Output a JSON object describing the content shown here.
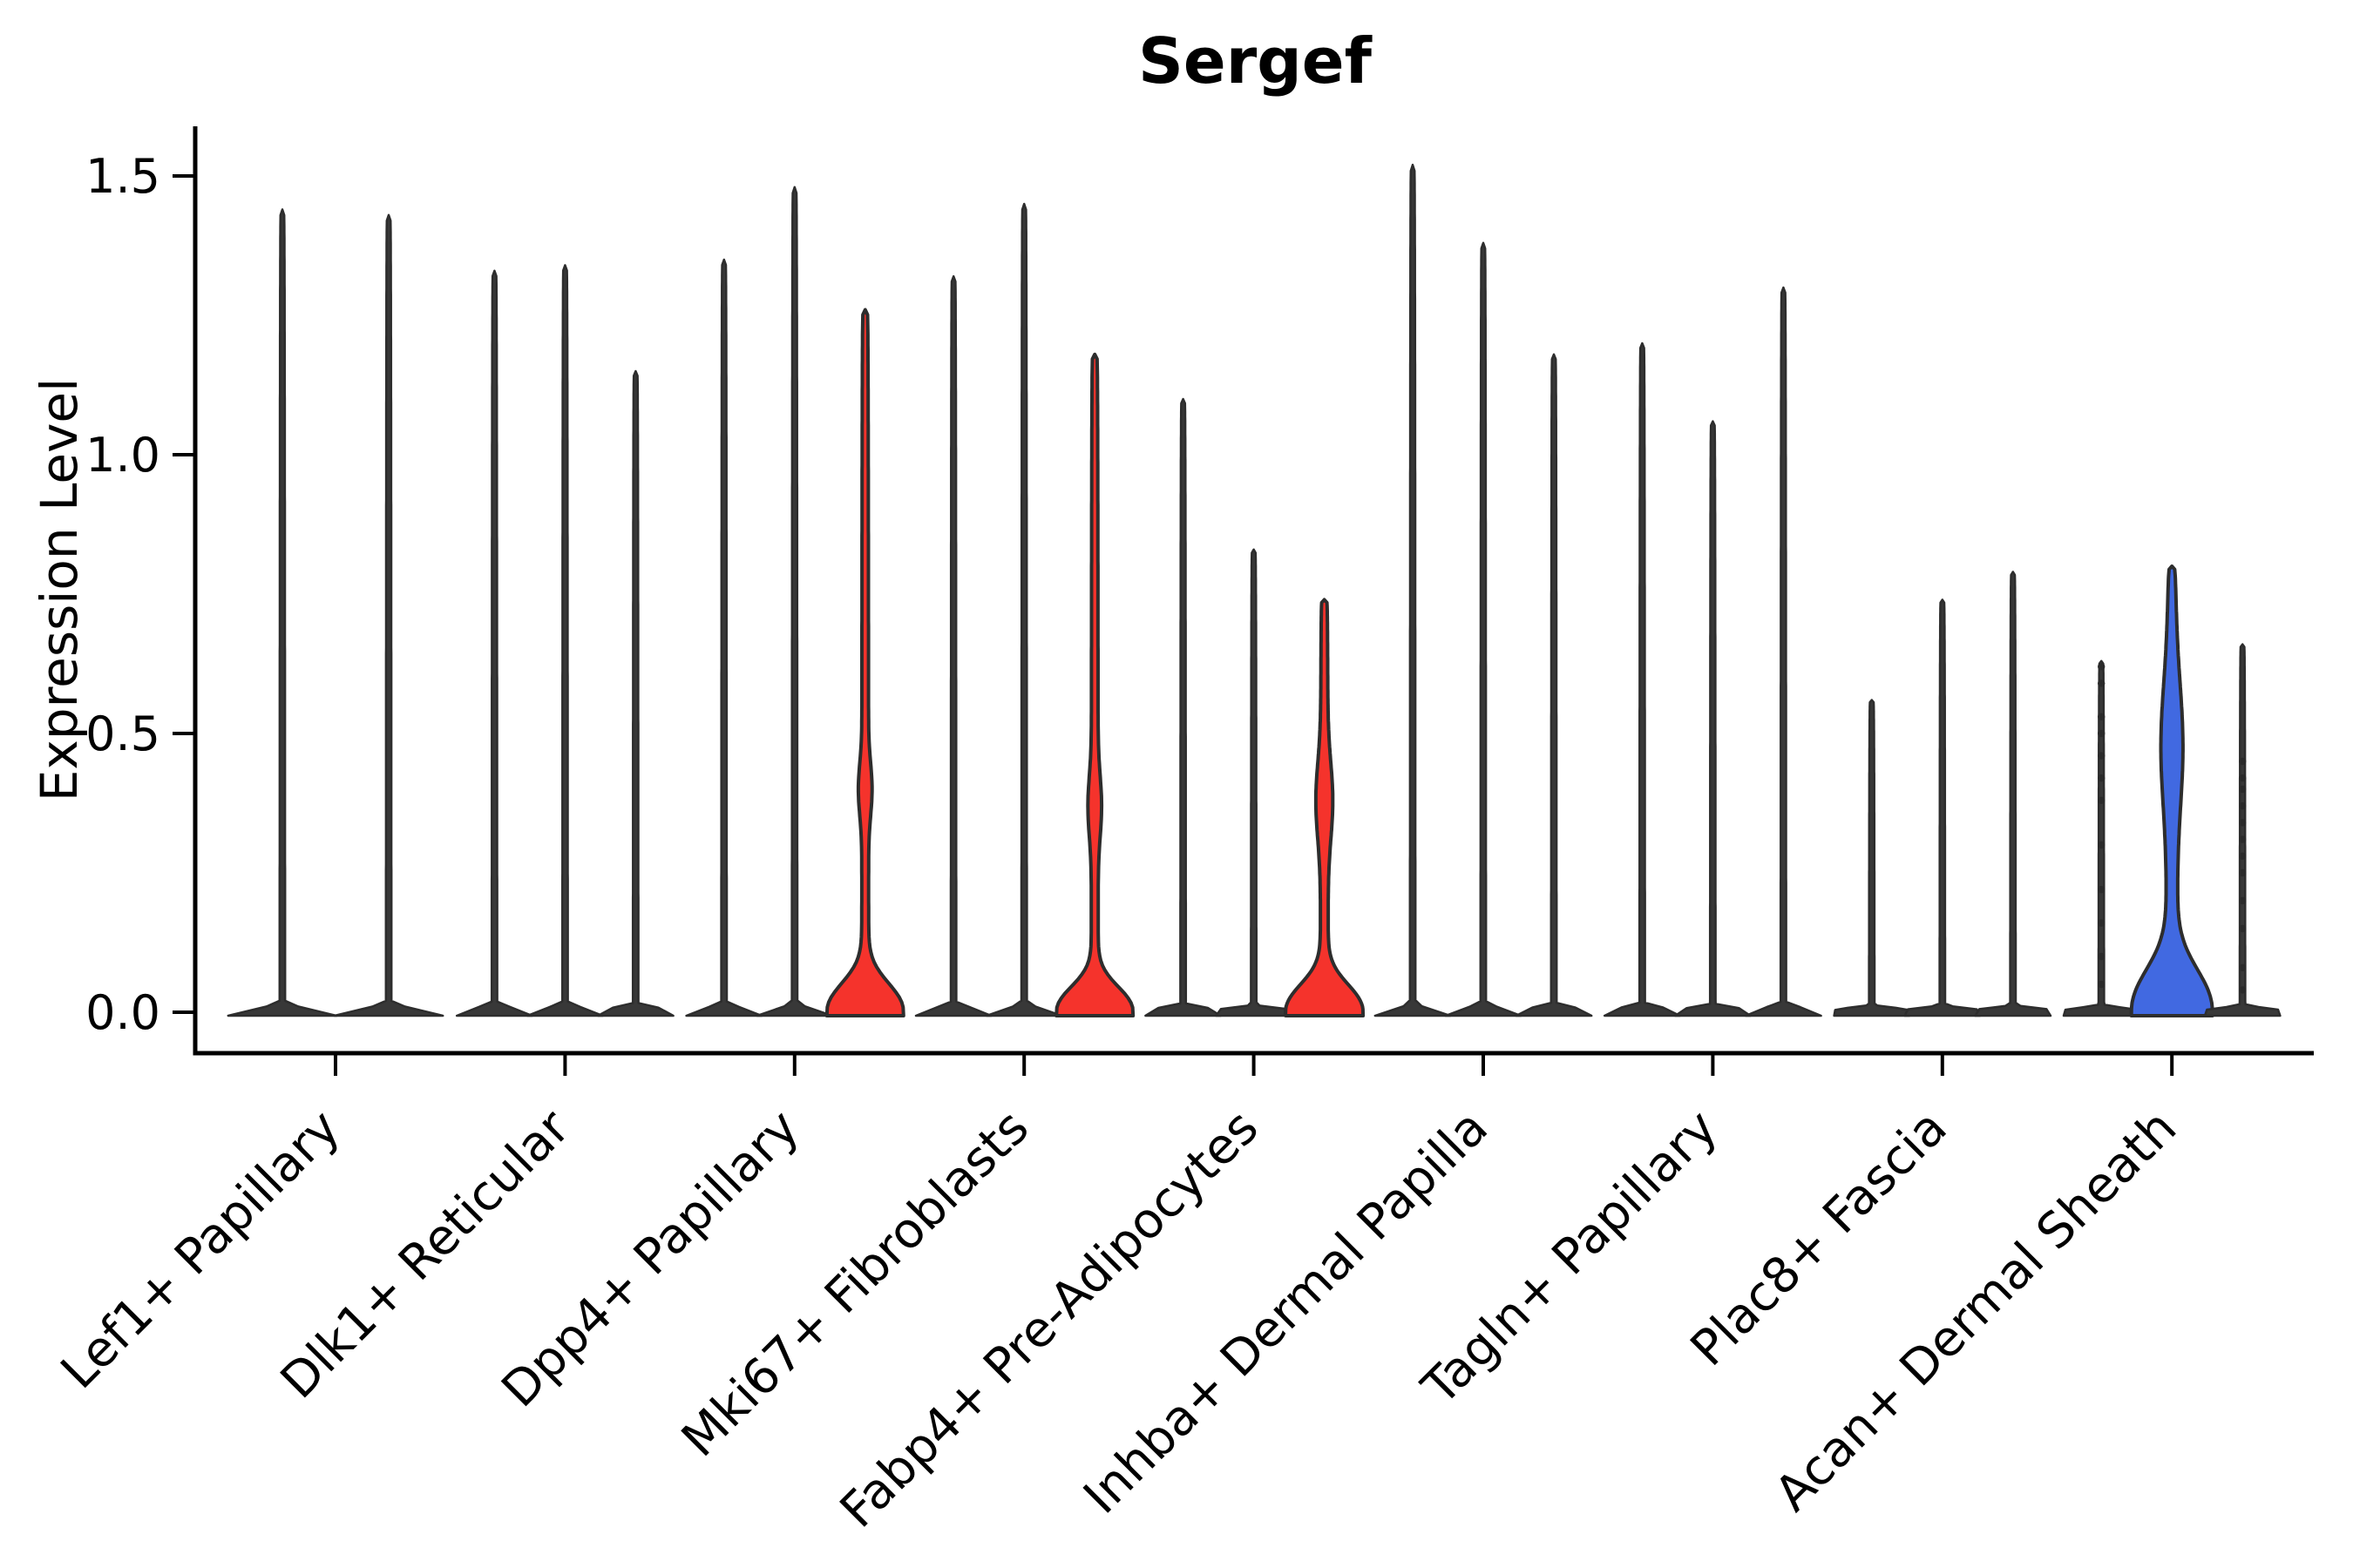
{
  "figure": {
    "title": "Sergef",
    "ylabel": "Expression Level"
  },
  "colors": {
    "red": "#f5332c",
    "blue": "#4169e1",
    "spike_fill": "#383838",
    "stroke": "#2d2d2d",
    "axis": "#000000",
    "text": "#000000"
  },
  "chart_data": {
    "type": "violin",
    "title": "Sergef",
    "xlabel": "",
    "ylabel": "Expression Level",
    "ylim": [
      0,
      1.59
    ],
    "yticks": [
      0,
      0.5,
      1.0,
      1.5
    ],
    "ytick_labels": [
      "0.0",
      "0.5",
      "1.0",
      "1.5"
    ],
    "grid": false,
    "legend": "none",
    "x_label_rotation_deg": 45,
    "categories": [
      "Lef1+ Papillary",
      "Dlk1+ Reticular",
      "Dpp4+ Papillary",
      "Mki67+ Fibroblasts",
      "Fabp4+ Pre-Adipocytes",
      "Inhba+ Dermal Papilla",
      "Tagln+ Papillary",
      "Plac8+ Fascia",
      "Acan+ Dermal Sheath"
    ],
    "groups": [
      {
        "category": "Lef1+ Papillary",
        "violins": [
          {
            "max": 1.44
          },
          {
            "max": 1.43
          }
        ]
      },
      {
        "category": "Dlk1+ Reticular",
        "violins": [
          {
            "max": 1.33
          },
          {
            "max": 1.34
          },
          {
            "max": 1.15
          }
        ]
      },
      {
        "category": "Dpp4+ Papillary",
        "violins": [
          {
            "max": 1.35
          },
          {
            "max": 1.48
          },
          {
            "max": 1.26,
            "color": "red",
            "dome": 0.068,
            "spike_hw": 4,
            "bulge": {
              "c": 0.4,
              "s": 0.065,
              "w": 4
            }
          }
        ]
      },
      {
        "category": "Mki67+ Fibroblasts",
        "violins": [
          {
            "max": 1.32
          },
          {
            "max": 1.45
          },
          {
            "max": 1.18,
            "color": "red",
            "dome": 0.06,
            "spike_hw": 4,
            "bulge": {
              "c": 0.37,
              "s": 0.075,
              "w": 4
            }
          }
        ]
      },
      {
        "category": "Fabp4+ Pre-Adipocytes",
        "violins": [
          {
            "max": 1.1
          },
          {
            "max": 0.83
          },
          {
            "max": 0.74,
            "color": "red",
            "dome": 0.065,
            "spike_hw": 4.5,
            "bulge": {
              "c": 0.38,
              "s": 0.095,
              "w": 5.5
            }
          }
        ]
      },
      {
        "category": "Inhba+ Dermal Papilla",
        "violins": [
          {
            "max": 1.52
          },
          {
            "max": 1.38
          },
          {
            "max": 1.18
          }
        ]
      },
      {
        "category": "Tagln+ Papillary",
        "violins": [
          {
            "max": 1.2
          },
          {
            "max": 1.06
          },
          {
            "max": 1.3
          }
        ]
      },
      {
        "category": "Plac8+ Fascia",
        "violins": [
          {
            "max": 0.56
          },
          {
            "max": 0.74
          },
          {
            "max": 0.79
          }
        ]
      },
      {
        "category": "Acan+ Dermal Sheath",
        "violins": [
          {
            "max": 0.63,
            "points": [
              0.05,
              0.1,
              0.16,
              0.22,
              0.3,
              0.38,
              0.42,
              0.46,
              0.5,
              0.53,
              0.59,
              0.62
            ]
          },
          {
            "max": 0.8,
            "color": "blue",
            "dome": 0.1,
            "spike_hw": 6.5,
            "cap": 0.15,
            "bulge": {
              "c": 0.48,
              "s": 0.15,
              "w": 7
            }
          },
          {
            "max": 0.66,
            "points": [
              0.04,
              0.08,
              0.15,
              0.2,
              0.25,
              0.28,
              0.31,
              0.34,
              0.37,
              0.4,
              0.42,
              0.45
            ]
          }
        ]
      }
    ]
  }
}
